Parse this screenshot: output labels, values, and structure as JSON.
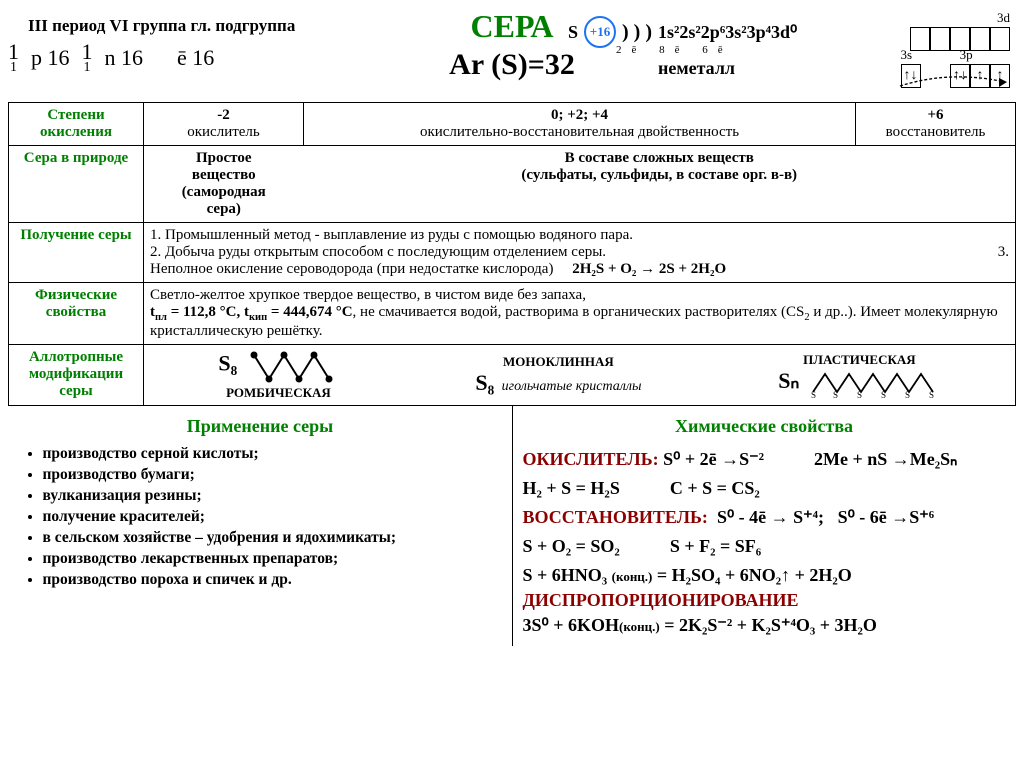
{
  "header": {
    "title": "СЕРА",
    "period": "III период VI группа гл. подгруппа",
    "p": "p 16",
    "n": "n 16",
    "e": "ē 16",
    "ar": "Ar (S)=32",
    "symbol": "S",
    "nucleus": "+16",
    "shells": ") ) )",
    "shell_e": "2ē 8ē 6ē",
    "config": "1s²2s²2p⁶3s²3p⁴3d⁰",
    "nonmetal": "неметалл",
    "orb": {
      "s3": "3s",
      "p3": "3p",
      "d3": "3d"
    }
  },
  "oxstates": {
    "label": "Степени окисления",
    "c1a": "-2",
    "c1b": "окислитель",
    "c2a": "0;    +2;    +4",
    "c2b": "окислительно-восстановительная двойственность",
    "c3a": "+6",
    "c3b": "восстановитель"
  },
  "nature": {
    "label": "Сера в природе",
    "c1a": "Простое вещество",
    "c1b": "(самородная сера)",
    "c2a": "В составе сложных веществ",
    "c2b": "(сульфаты, сульфиды, в составе орг. в-в)"
  },
  "obtain": {
    "label": "Получение серы",
    "l1": "1. Промышленный метод - выплавление из руды с помощью водяного пара.",
    "l2": "2. Добыча руды открытым способом с последующим отделением серы.",
    "l3pre": "3.",
    "l3": "Неполное окисление сероводорода (при недостатке кислорода)",
    "l3eq": "2H₂S + O₂ → 2S + 2H₂O"
  },
  "phys": {
    "label": "Физические свойства",
    "t1": "Светло-желтое хрупкое твердое вещество, в чистом виде без запаха,",
    "t2a": "t",
    "t2b": " = 112,8 °С, t",
    "t2c": " = 444,674 °С",
    "t2d": ", не смачивается водой,  растворима в органических растворителях (СS",
    "t2e": " и др..). Имеет  молекулярную кристаллическую решётку."
  },
  "allo": {
    "label": "Аллотропные модификации серы",
    "a1": "РОМБИЧЕСКАЯ",
    "a1f": "S₈",
    "a2": "МОНОКЛИННАЯ",
    "a2i": "игольчатые кристаллы",
    "a2f": "S₈",
    "a3": "ПЛАСТИЧЕСКАЯ",
    "a3f": "Sₙ"
  },
  "app": {
    "title": "Применение серы",
    "items": [
      "производство серной кислоты;",
      "производство бумаги;",
      "вулканизация резины;",
      "получение красителей;",
      "в сельском хозяйстве – удобрения и ядохимикаты;",
      "производство лекарственных препаратов;",
      "производство пороха и спичек и др."
    ]
  },
  "chem": {
    "title": "Химические свойства",
    "ox_label": "ОКИСЛИТЕЛЬ:",
    "ox1": "S⁰ + 2ē →S⁻²",
    "ox2": "2Me + nS →Me₂Sₙ",
    "r1": "H₂ + S = H₂S",
    "r2": "C + S = CS₂",
    "red_label": "ВОССТАНОВИТЕЛЬ:",
    "red1": "S⁰ - 4ē → S⁺⁴;",
    "red2": "S⁰ - 6ē →S⁺⁶",
    "r3": "S + O₂ = SO₂",
    "r4": "S + F₂ = SF₆",
    "r5a": "S + 6HNO₃ ",
    "r5b": "(конц.)",
    "r5c": " = H₂SO₄ + 6NO₂↑ + 2H₂O",
    "disp": "ДИСПРОПОРЦИОНИРОВАНИЕ",
    "r6a": "3S⁰ + 6KOH",
    "r6b": "(конц.)",
    "r6c": " = 2K₂S⁻² + K₂S⁺⁴O₃ + 3H₂O"
  }
}
